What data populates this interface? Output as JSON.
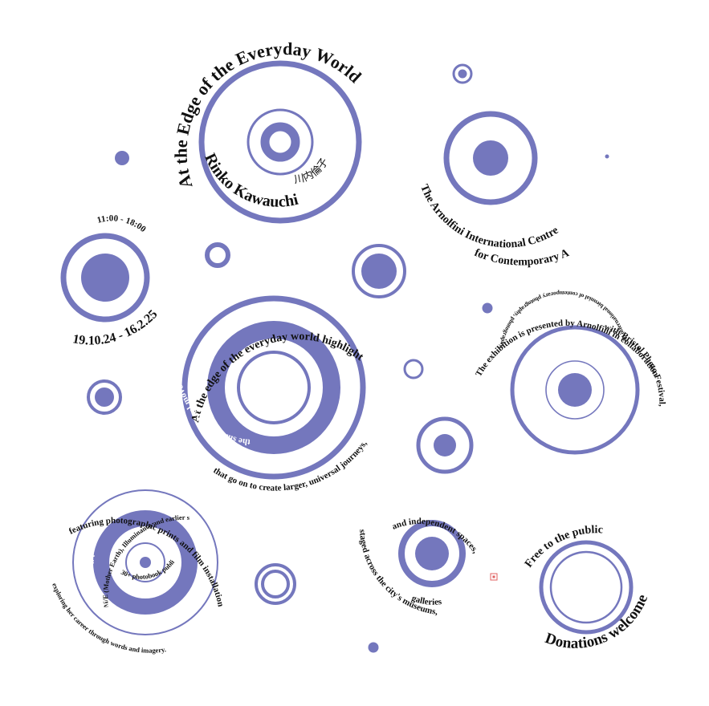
{
  "colors": {
    "accent": "#7477bd",
    "text": "#111111",
    "background": "#ffffff",
    "mark": "#e06060"
  },
  "title": {
    "exhibition": "At the Edge of the Everyday World",
    "artist": "Rinko Kawauchi",
    "artist_japanese": "川内倫子"
  },
  "venue": {
    "line1": "The Arnolfini International Centre",
    "line2": "for Contemporary Arts"
  },
  "hours": "11:00 - 18:00",
  "dates": "19.10.24 - 16.2.25",
  "description": {
    "outer": "At the edge of the everyday world highlights",
    "inner": "the small, personal movements within our lives",
    "below": "that go on to create larger, universal journeys,"
  },
  "collaboration": {
    "line1": "The exhibition is presented by Arnolfini in collaboration",
    "line2": "with Bristol Photo Festival,",
    "line3": "an international biennial of contemporary photography, photography,"
  },
  "works": {
    "line1": "featuring photographic prints and film installations from",
    "line2": "M/E (Mother Earth), Illuminance and earlier series such as Ametsuchi and AILA,",
    "line3": "whilst also showcasing Kawauchi's",
    "line4": "30+ photobook publications,",
    "line5": "exploring her career through words and imagery."
  },
  "citywide": {
    "line1": "and independent spaces,",
    "line2": "galleries",
    "line3": "staged across the city's museums,"
  },
  "admission": {
    "free": "Free to the public",
    "donations": "Donations welcome"
  }
}
